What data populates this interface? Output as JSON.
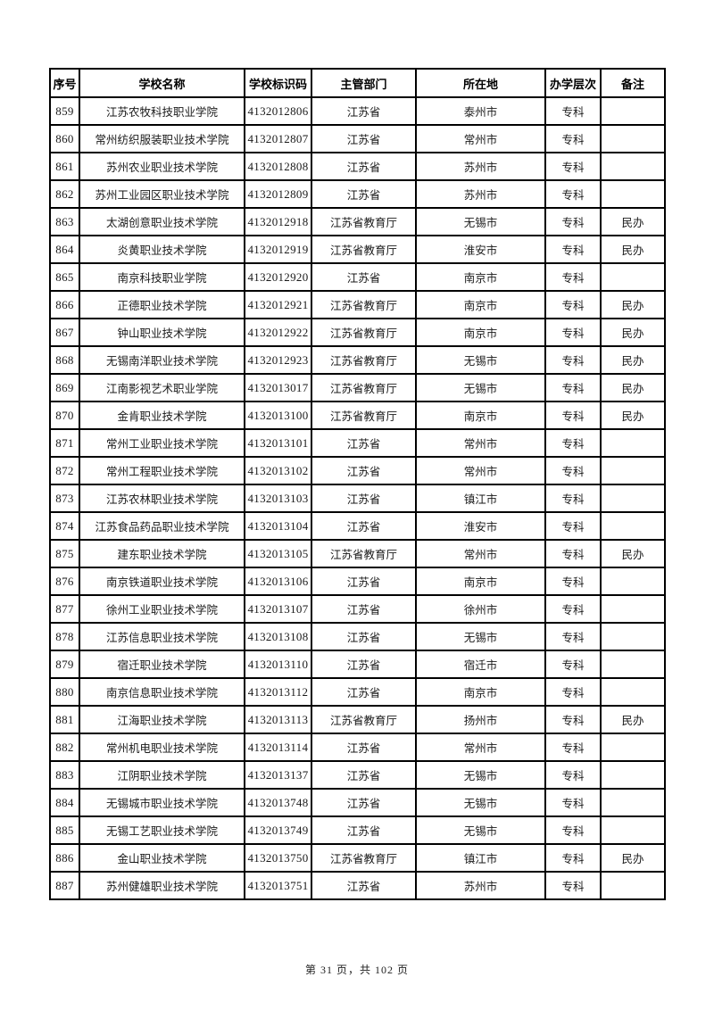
{
  "page": {
    "footer": "第 31 页，共 102 页"
  },
  "table": {
    "columns": [
      {
        "key": "seq",
        "label": "序号"
      },
      {
        "key": "name",
        "label": "学校名称"
      },
      {
        "key": "code",
        "label": "学校标识码"
      },
      {
        "key": "dept",
        "label": "主管部门"
      },
      {
        "key": "city",
        "label": "所在地"
      },
      {
        "key": "level",
        "label": "办学层次"
      },
      {
        "key": "note",
        "label": "备注"
      }
    ],
    "rows": [
      [
        "859",
        "江苏农牧科技职业学院",
        "4132012806",
        "江苏省",
        "泰州市",
        "专科",
        ""
      ],
      [
        "860",
        "常州纺织服装职业技术学院",
        "4132012807",
        "江苏省",
        "常州市",
        "专科",
        ""
      ],
      [
        "861",
        "苏州农业职业技术学院",
        "4132012808",
        "江苏省",
        "苏州市",
        "专科",
        ""
      ],
      [
        "862",
        "苏州工业园区职业技术学院",
        "4132012809",
        "江苏省",
        "苏州市",
        "专科",
        ""
      ],
      [
        "863",
        "太湖创意职业技术学院",
        "4132012918",
        "江苏省教育厅",
        "无锡市",
        "专科",
        "民办"
      ],
      [
        "864",
        "炎黄职业技术学院",
        "4132012919",
        "江苏省教育厅",
        "淮安市",
        "专科",
        "民办"
      ],
      [
        "865",
        "南京科技职业学院",
        "4132012920",
        "江苏省",
        "南京市",
        "专科",
        ""
      ],
      [
        "866",
        "正德职业技术学院",
        "4132012921",
        "江苏省教育厅",
        "南京市",
        "专科",
        "民办"
      ],
      [
        "867",
        "钟山职业技术学院",
        "4132012922",
        "江苏省教育厅",
        "南京市",
        "专科",
        "民办"
      ],
      [
        "868",
        "无锡南洋职业技术学院",
        "4132012923",
        "江苏省教育厅",
        "无锡市",
        "专科",
        "民办"
      ],
      [
        "869",
        "江南影视艺术职业学院",
        "4132013017",
        "江苏省教育厅",
        "无锡市",
        "专科",
        "民办"
      ],
      [
        "870",
        "金肯职业技术学院",
        "4132013100",
        "江苏省教育厅",
        "南京市",
        "专科",
        "民办"
      ],
      [
        "871",
        "常州工业职业技术学院",
        "4132013101",
        "江苏省",
        "常州市",
        "专科",
        ""
      ],
      [
        "872",
        "常州工程职业技术学院",
        "4132013102",
        "江苏省",
        "常州市",
        "专科",
        ""
      ],
      [
        "873",
        "江苏农林职业技术学院",
        "4132013103",
        "江苏省",
        "镇江市",
        "专科",
        ""
      ],
      [
        "874",
        "江苏食品药品职业技术学院",
        "4132013104",
        "江苏省",
        "淮安市",
        "专科",
        ""
      ],
      [
        "875",
        "建东职业技术学院",
        "4132013105",
        "江苏省教育厅",
        "常州市",
        "专科",
        "民办"
      ],
      [
        "876",
        "南京铁道职业技术学院",
        "4132013106",
        "江苏省",
        "南京市",
        "专科",
        ""
      ],
      [
        "877",
        "徐州工业职业技术学院",
        "4132013107",
        "江苏省",
        "徐州市",
        "专科",
        ""
      ],
      [
        "878",
        "江苏信息职业技术学院",
        "4132013108",
        "江苏省",
        "无锡市",
        "专科",
        ""
      ],
      [
        "879",
        "宿迁职业技术学院",
        "4132013110",
        "江苏省",
        "宿迁市",
        "专科",
        ""
      ],
      [
        "880",
        "南京信息职业技术学院",
        "4132013112",
        "江苏省",
        "南京市",
        "专科",
        ""
      ],
      [
        "881",
        "江海职业技术学院",
        "4132013113",
        "江苏省教育厅",
        "扬州市",
        "专科",
        "民办"
      ],
      [
        "882",
        "常州机电职业技术学院",
        "4132013114",
        "江苏省",
        "常州市",
        "专科",
        ""
      ],
      [
        "883",
        "江阴职业技术学院",
        "4132013137",
        "江苏省",
        "无锡市",
        "专科",
        ""
      ],
      [
        "884",
        "无锡城市职业技术学院",
        "4132013748",
        "江苏省",
        "无锡市",
        "专科",
        ""
      ],
      [
        "885",
        "无锡工艺职业技术学院",
        "4132013749",
        "江苏省",
        "无锡市",
        "专科",
        ""
      ],
      [
        "886",
        "金山职业技术学院",
        "4132013750",
        "江苏省教育厅",
        "镇江市",
        "专科",
        "民办"
      ],
      [
        "887",
        "苏州健雄职业技术学院",
        "4132013751",
        "江苏省",
        "苏州市",
        "专科",
        ""
      ]
    ]
  }
}
